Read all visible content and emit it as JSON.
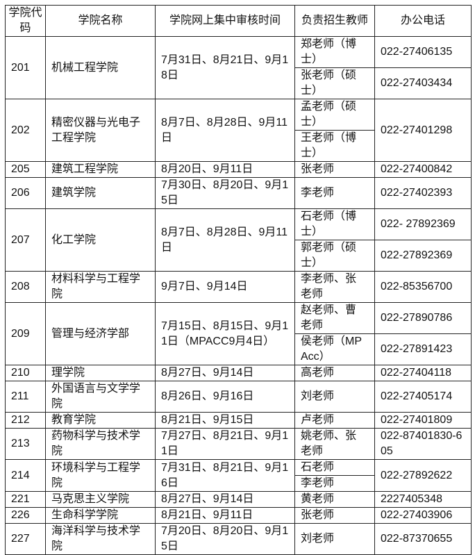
{
  "header": {
    "code": "学院代码",
    "name": "学院名称",
    "dates": "学院网上集中审核时间",
    "teacher": "负责招生教师",
    "phone": "办公电话"
  },
  "rows": [
    {
      "code": "201",
      "name": "机械工程学院",
      "dates": "7月31日、8月21日、9月18日",
      "teachers": [
        "郑老师（博士）",
        "张老师（硕士）"
      ],
      "phones": [
        "022-27406135",
        "022-27403434"
      ]
    },
    {
      "code": "202",
      "name": "精密仪器与光电子工程学院",
      "dates": "8月7日、8月28日、9月11日",
      "teachers": [
        "孟老师（硕士）",
        "王老师（博士）"
      ],
      "phones": [
        "022-27401298"
      ]
    },
    {
      "code": "205",
      "name": "建筑工程学院",
      "dates": "8月20日、9月11日",
      "teachers": [
        "张老师"
      ],
      "phones": [
        "022-27400842"
      ]
    },
    {
      "code": "206",
      "name": "建筑学院",
      "dates": "7月30日、8月20日、9月15日",
      "teachers": [
        "李老师"
      ],
      "phones": [
        "022-27402393"
      ]
    },
    {
      "code": "207",
      "name": "化工学院",
      "dates": "8月7日、8月28日、9月11日",
      "teachers": [
        "石老师（博士）",
        "郭老师（硕士）"
      ],
      "phones": [
        "022- 27892369",
        "022-27892369"
      ]
    },
    {
      "code": "208",
      "name": "材料科学与工程学院",
      "dates": "9月7日、9月14日",
      "teachers": [
        "李老师、张老师"
      ],
      "phones": [
        "022-85356700"
      ]
    },
    {
      "code": "209",
      "name": "管理与经济学部",
      "dates": "7月15日、8月15日、9月11日（MPACC9月4日）",
      "teachers": [
        "赵老师、曹老师",
        "侯老师（MPAcc）"
      ],
      "phones": [
        "022-27890786",
        "022-27891423"
      ]
    },
    {
      "code": "210",
      "name": "理学院",
      "dates": "8月27日、9月14日",
      "teachers": [
        "高老师"
      ],
      "phones": [
        "022-27404118"
      ]
    },
    {
      "code": "211",
      "name": "外国语言与文学学院",
      "dates": "8月26日、9月16日",
      "teachers": [
        "刘老师"
      ],
      "phones": [
        "022-27405174"
      ]
    },
    {
      "code": "212",
      "name": "教育学院",
      "dates": "8月21日、9月15日",
      "teachers": [
        "卢老师"
      ],
      "phones": [
        "022-27401809"
      ]
    },
    {
      "code": "213",
      "name": "药物科学与技术学院",
      "dates": "7月27日、8月21日、9月11日",
      "teachers": [
        "姚老师、张老师"
      ],
      "phones": [
        "022-87401830-605"
      ]
    },
    {
      "code": "214",
      "name": "环境科学与工程学院",
      "dates": "7月31日、8月21日、9月16日",
      "teachers": [
        "石老师",
        "李老师"
      ],
      "phones": [
        "022-27892622"
      ]
    },
    {
      "code": "221",
      "name": "马克思主义学院",
      "dates": "8月27日、9月14日",
      "teachers": [
        "黄老师"
      ],
      "phones": [
        "2227405348"
      ]
    },
    {
      "code": "226",
      "name": "生命科学学院",
      "dates": "8月21日、9月11日",
      "teachers": [
        "张老师"
      ],
      "phones": [
        "022-27403906"
      ]
    },
    {
      "code": "227",
      "name": "海洋科学与技术学院",
      "dates": "7月20日、8月20日、9月15日",
      "teachers": [
        "刘老师"
      ],
      "phones": [
        "022-87370655"
      ]
    }
  ]
}
